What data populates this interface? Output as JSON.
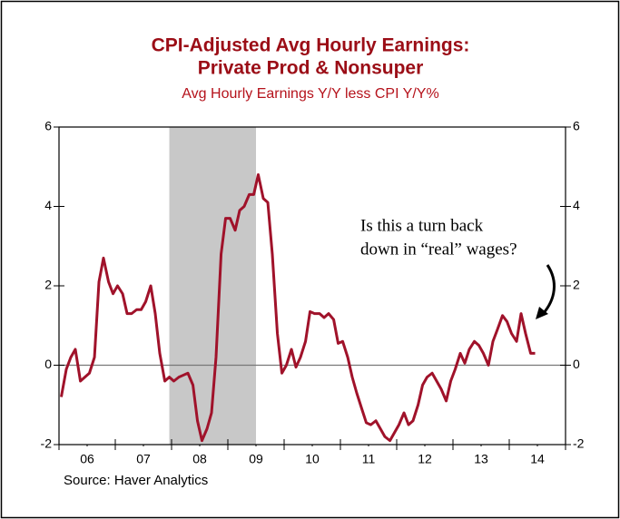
{
  "chart_data": {
    "type": "line",
    "title": [
      "CPI-Adjusted Avg Hourly Earnings:",
      "Private Prod & Nonsuper"
    ],
    "subtitle": "Avg Hourly Earnings Y/Y less CPI Y/Y%",
    "source": "Source: Haver Analytics",
    "annotation": [
      "Is this a turn back",
      "down in “real” wages?"
    ],
    "xlim": [
      2006,
      2015
    ],
    "xticks": [
      {
        "value": 2006.5,
        "label": "06"
      },
      {
        "value": 2007.5,
        "label": "07"
      },
      {
        "value": 2008.5,
        "label": "08"
      },
      {
        "value": 2009.5,
        "label": "09"
      },
      {
        "value": 2010.5,
        "label": "10"
      },
      {
        "value": 2011.5,
        "label": "11"
      },
      {
        "value": 2012.5,
        "label": "12"
      },
      {
        "value": 2013.5,
        "label": "13"
      },
      {
        "value": 2014.5,
        "label": "14"
      }
    ],
    "xminor_ticks": [
      2006,
      2007,
      2008,
      2009,
      2010,
      2011,
      2012,
      2013,
      2014,
      2015
    ],
    "ylim": [
      -2,
      6
    ],
    "yticks": [
      -2,
      0,
      2,
      4,
      6
    ],
    "y2lim": [
      -2,
      6
    ],
    "y2ticks": [
      -2,
      0,
      2,
      4,
      6
    ],
    "zero_line": true,
    "shaded_ranges": [
      [
        2007.96,
        2009.5
      ]
    ],
    "shade_color": "#c8c8c8",
    "x": [
      2006.04,
      2006.13,
      2006.21,
      2006.29,
      2006.38,
      2006.46,
      2006.54,
      2006.63,
      2006.71,
      2006.79,
      2006.88,
      2006.96,
      2007.04,
      2007.13,
      2007.21,
      2007.29,
      2007.38,
      2007.46,
      2007.54,
      2007.63,
      2007.71,
      2007.79,
      2007.88,
      2007.96,
      2008.04,
      2008.13,
      2008.21,
      2008.29,
      2008.38,
      2008.46,
      2008.54,
      2008.63,
      2008.71,
      2008.79,
      2008.88,
      2008.96,
      2009.04,
      2009.13,
      2009.21,
      2009.29,
      2009.38,
      2009.46,
      2009.54,
      2009.63,
      2009.71,
      2009.79,
      2009.88,
      2009.96,
      2010.04,
      2010.13,
      2010.21,
      2010.29,
      2010.38,
      2010.46,
      2010.54,
      2010.63,
      2010.71,
      2010.79,
      2010.88,
      2010.96,
      2011.04,
      2011.13,
      2011.21,
      2011.29,
      2011.38,
      2011.46,
      2011.54,
      2011.63,
      2011.71,
      2011.79,
      2011.88,
      2011.96,
      2012.04,
      2012.13,
      2012.21,
      2012.29,
      2012.38,
      2012.46,
      2012.54,
      2012.63,
      2012.71,
      2012.79,
      2012.88,
      2012.96,
      2013.04,
      2013.13,
      2013.21,
      2013.29,
      2013.38,
      2013.46,
      2013.54,
      2013.63,
      2013.71,
      2013.79,
      2013.88,
      2013.96,
      2014.04,
      2014.13,
      2014.21,
      2014.29,
      2014.38,
      2014.46
    ],
    "series": [
      {
        "color": "#a0122a",
        "values": [
          -0.8,
          -0.1,
          0.2,
          0.4,
          -0.4,
          -0.3,
          -0.2,
          0.2,
          2.1,
          2.7,
          2.1,
          1.8,
          2.0,
          1.8,
          1.3,
          1.3,
          1.4,
          1.4,
          1.6,
          2.0,
          1.3,
          0.3,
          -0.4,
          -0.3,
          -0.4,
          -0.3,
          -0.25,
          -0.2,
          -0.5,
          -1.4,
          -1.9,
          -1.6,
          -1.2,
          0.2,
          2.8,
          3.7,
          3.7,
          3.4,
          3.9,
          4.0,
          4.3,
          4.3,
          4.8,
          4.2,
          4.1,
          2.8,
          0.8,
          -0.2,
          0.0,
          0.4,
          -0.05,
          0.2,
          0.6,
          1.35,
          1.3,
          1.3,
          1.2,
          1.3,
          1.15,
          0.55,
          0.6,
          0.2,
          -0.3,
          -0.7,
          -1.1,
          -1.45,
          -1.5,
          -1.4,
          -1.6,
          -1.8,
          -1.9,
          -1.7,
          -1.5,
          -1.2,
          -1.5,
          -1.4,
          -1.0,
          -0.5,
          -0.3,
          -0.2,
          -0.4,
          -0.6,
          -0.9,
          -0.4,
          -0.1,
          0.3,
          0.05,
          0.4,
          0.6,
          0.5,
          0.3,
          0.0,
          0.6,
          0.9,
          1.25,
          1.1,
          0.8,
          0.6,
          1.3,
          0.8,
          0.3,
          0.3
        ]
      }
    ]
  }
}
